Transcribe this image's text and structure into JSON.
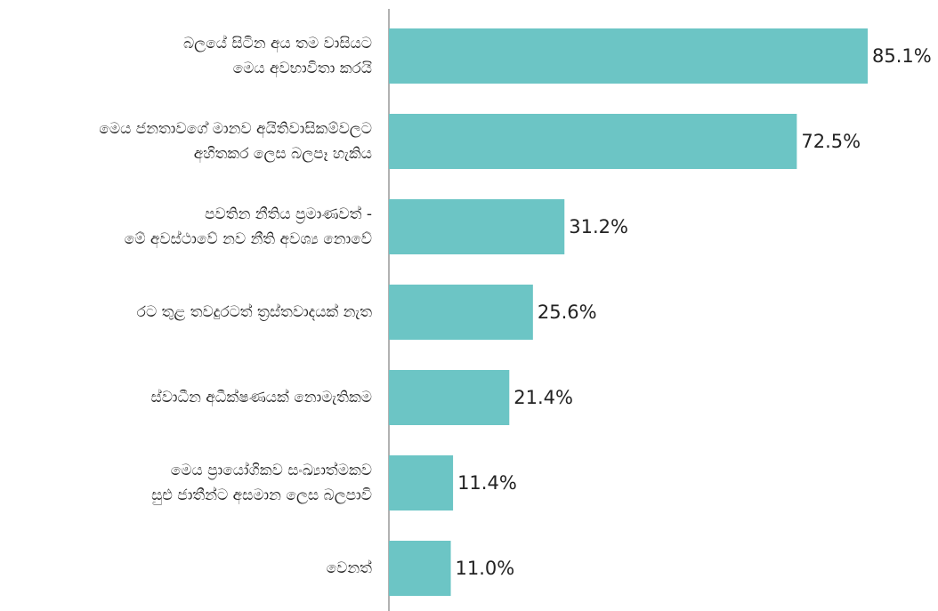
{
  "chart_data": {
    "type": "barh",
    "categories": [
      "බලයේ සිටින අය තම වාසියට\nමෙය අවභාවිතා කරයි",
      "මෙය ජනතාවගේ මානව අයිතිවාසිකම්වලට\nඅහිතකර ලෙස බලපෑ හැකිය",
      "පවතින නීතිය ප්‍රමාණවත් -\nමේ අවස්ථාවේ නව නීති අවශ්‍ය නොවේ",
      "රට තුළ තවදුරටත් ත්‍රස්තවාදයක් නැත",
      "ස්වාධීන අධීක්ෂණයක් නොමැතිකම",
      "මෙය ප්‍රායෝගිකව සංඛ්‍යාත්මකව\nසුළු ජාතීන්ට අසමාන ලෙස බලපාවි",
      "වෙනත්"
    ],
    "values": [
      85.1,
      72.5,
      31.2,
      25.6,
      21.4,
      11.4,
      11.0
    ],
    "value_labels": [
      "85.1%",
      "72.5%",
      "31.2%",
      "25.6%",
      "21.4%",
      "11.4%",
      "11.0%"
    ],
    "color": "#6cc5c5",
    "xlim": [
      0,
      90
    ]
  }
}
